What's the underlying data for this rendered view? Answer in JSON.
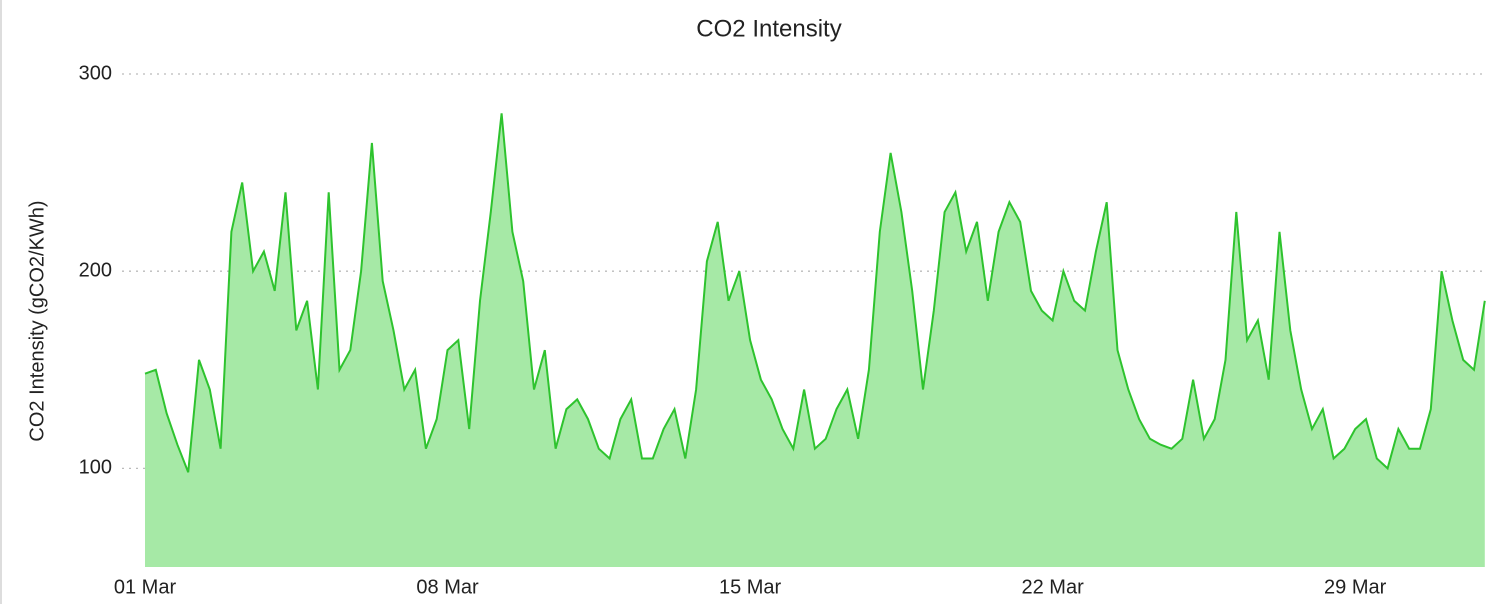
{
  "chart_data": {
    "type": "area",
    "title": "CO2 Intensity",
    "y_label": "CO2 Intensity (gCO2/KWh)",
    "color": "#2ec32e",
    "fill": "#a6e9a6",
    "x": [
      0,
      0.25,
      0.5,
      0.75,
      1,
      1.25,
      1.5,
      1.75,
      2,
      2.25,
      2.5,
      2.75,
      3,
      3.25,
      3.5,
      3.75,
      4,
      4.25,
      4.5,
      4.75,
      5,
      5.25,
      5.5,
      5.75,
      6,
      6.25,
      6.5,
      6.75,
      7,
      7.25,
      7.5,
      7.75,
      8,
      8.25,
      8.5,
      8.75,
      9,
      9.25,
      9.5,
      9.75,
      10,
      10.25,
      10.5,
      10.75,
      11,
      11.25,
      11.5,
      11.75,
      12,
      12.25,
      12.5,
      12.75,
      13,
      13.25,
      13.5,
      13.75,
      14,
      14.25,
      14.5,
      14.75,
      15,
      15.25,
      15.5,
      15.75,
      16,
      16.25,
      16.5,
      16.75,
      17,
      17.25,
      17.5,
      17.75,
      18,
      18.25,
      18.5,
      18.75,
      19,
      19.25,
      19.5,
      19.75,
      20,
      20.25,
      20.5,
      20.75,
      21,
      21.25,
      21.5,
      21.75,
      22,
      22.25,
      22.5,
      22.75,
      23,
      23.25,
      23.5,
      23.75,
      24,
      24.25,
      24.5,
      24.75,
      25,
      25.25,
      25.5,
      25.75,
      26,
      26.25,
      26.5,
      26.75,
      27,
      27.25,
      27.5,
      27.75,
      28,
      28.25,
      28.5,
      28.75,
      29,
      29.25,
      29.5,
      29.75,
      30,
      30.25,
      30.5,
      30.75,
      31
    ],
    "values": [
      148,
      150,
      128,
      112,
      98,
      155,
      140,
      110,
      220,
      245,
      200,
      210,
      190,
      240,
      170,
      185,
      140,
      240,
      150,
      160,
      200,
      265,
      195,
      170,
      140,
      150,
      110,
      125,
      160,
      165,
      120,
      185,
      230,
      280,
      220,
      195,
      140,
      160,
      110,
      130,
      135,
      125,
      110,
      105,
      125,
      135,
      105,
      105,
      120,
      130,
      105,
      140,
      205,
      225,
      185,
      200,
      165,
      145,
      135,
      120,
      110,
      140,
      110,
      115,
      130,
      140,
      115,
      150,
      220,
      260,
      230,
      190,
      140,
      180,
      230,
      240,
      210,
      225,
      185,
      220,
      235,
      225,
      190,
      180,
      175,
      200,
      185,
      180,
      210,
      235,
      160,
      140,
      125,
      115,
      112,
      110,
      115,
      145,
      115,
      125,
      155,
      230,
      165,
      175,
      145,
      220,
      170,
      140,
      120,
      130,
      105,
      110,
      120,
      125,
      105,
      100,
      120,
      110,
      110,
      130,
      200,
      175,
      155,
      150,
      185
    ],
    "xlim": [
      0,
      31.05
    ],
    "xticks": [
      {
        "value": 0,
        "label": "01 Mar"
      },
      {
        "value": 7,
        "label": "08 Mar"
      },
      {
        "value": 14,
        "label": "15 Mar"
      },
      {
        "value": 21,
        "label": "22 Mar"
      },
      {
        "value": 28,
        "label": "29 Mar"
      }
    ],
    "ylim": [
      50,
      300
    ],
    "yticks": [
      100,
      200,
      300
    ],
    "grid": true
  }
}
